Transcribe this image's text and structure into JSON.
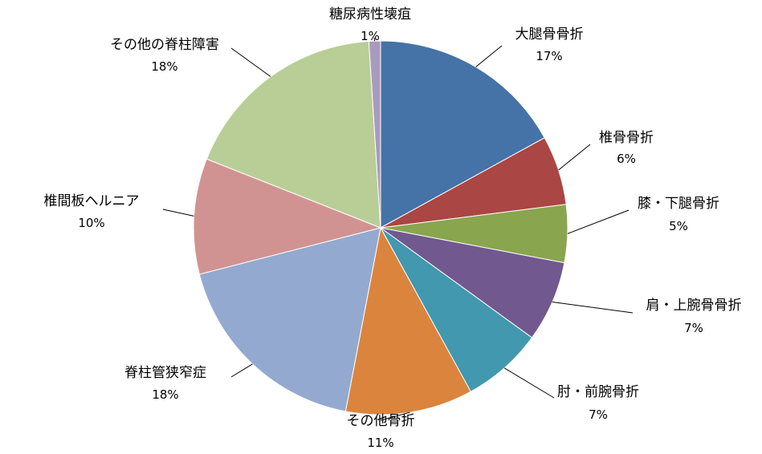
{
  "chart_data": {
    "type": "pie",
    "title": "",
    "start_angle_deg": 0,
    "direction": "clockwise",
    "slices": [
      {
        "label": "大腿骨骨折",
        "value": 17,
        "value_label": "17%",
        "color": "#4572A7"
      },
      {
        "label": "椎骨骨折",
        "value": 6,
        "value_label": "6%",
        "color": "#AA4643"
      },
      {
        "label": "膝・下腿骨折",
        "value": 5,
        "value_label": "5%",
        "color": "#89A54E"
      },
      {
        "label": "肩・上腕骨骨折",
        "value": 7,
        "value_label": "7%",
        "color": "#71588F"
      },
      {
        "label": "肘・前腕骨折",
        "value": 7,
        "value_label": "7%",
        "color": "#4198AF"
      },
      {
        "label": "その他骨折",
        "value": 11,
        "value_label": "11%",
        "color": "#DB843D"
      },
      {
        "label": "脊柱管狭窄症",
        "value": 18,
        "value_label": "18%",
        "color": "#93A9CF"
      },
      {
        "label": "椎間板ヘルニア",
        "value": 10,
        "value_label": "10%",
        "color": "#D19392"
      },
      {
        "label": "その他の脊柱障害",
        "value": 18,
        "value_label": "18%",
        "color": "#B9CD96"
      },
      {
        "label": "糖尿病性壊疽",
        "value": 1,
        "value_label": "1%",
        "color": "#A99BBD"
      }
    ]
  }
}
